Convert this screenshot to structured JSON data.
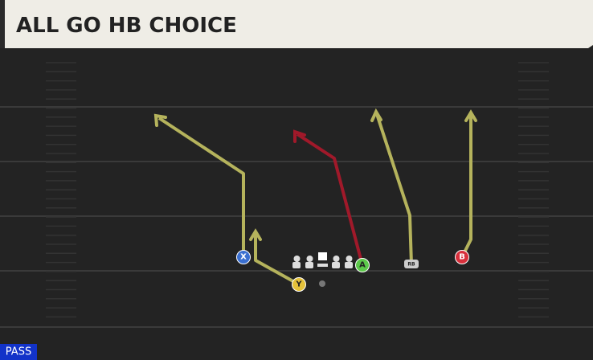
{
  "header": {
    "title": "ALL GO HB CHOICE"
  },
  "play_type": "PASS",
  "players": [
    {
      "label": "X"
    },
    {
      "label": "Y"
    },
    {
      "label": "A"
    },
    {
      "label": "RB"
    },
    {
      "label": "B"
    }
  ]
}
